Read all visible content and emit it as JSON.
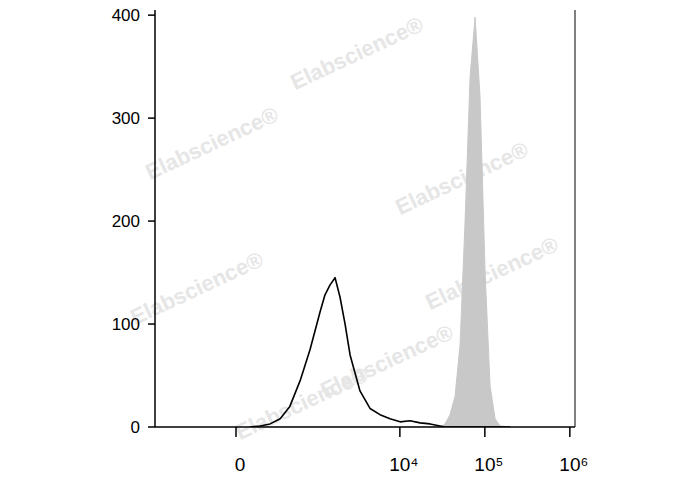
{
  "chart_data": {
    "type": "line",
    "annotations": [
      "Elabscience®"
    ],
    "x": [
      90,
      165,
      250,
      355,
      480,
      650,
      860,
      1140,
      1300,
      1500,
      1720,
      1970,
      2260,
      2590,
      3390,
      4450,
      5840,
      7660,
      10050,
      13170,
      17280,
      22660,
      29720,
      34030,
      38960,
      44620,
      51100,
      58530,
      67000,
      76750,
      87860,
      100650,
      115200,
      132000,
      151000,
      197800
    ],
    "series": [
      {
        "type": "area",
        "color": "#c8c8c8",
        "values": [
          0,
          0,
          0,
          0,
          0,
          0,
          0,
          0,
          0,
          0,
          0,
          0,
          0,
          0,
          0,
          0,
          0,
          0,
          0,
          0,
          0,
          0,
          0,
          3,
          12,
          30,
          80,
          200,
          340,
          398,
          320,
          150,
          40,
          8,
          1,
          0
        ]
      },
      {
        "type": "line",
        "color": "#000000",
        "values": [
          0,
          1,
          3,
          8,
          20,
          45,
          75,
          112,
          128,
          138,
          145,
          126,
          100,
          70,
          35,
          18,
          12,
          8,
          5,
          6,
          4,
          3,
          1,
          0,
          0,
          0,
          0,
          0,
          0,
          0,
          0,
          0,
          0,
          0,
          0,
          0
        ]
      }
    ],
    "xlim": [
      -1046,
      1150000
    ],
    "xticks": [
      0,
      {
        "value": 10000,
        "label": "10⁴"
      },
      {
        "value": 100000,
        "label": "10⁵"
      },
      {
        "value": 1000000,
        "label": "10⁶"
      }
    ],
    "ylim": [
      0,
      405
    ],
    "yticks": [
      0,
      100,
      200,
      300,
      400
    ],
    "grid": false
  }
}
